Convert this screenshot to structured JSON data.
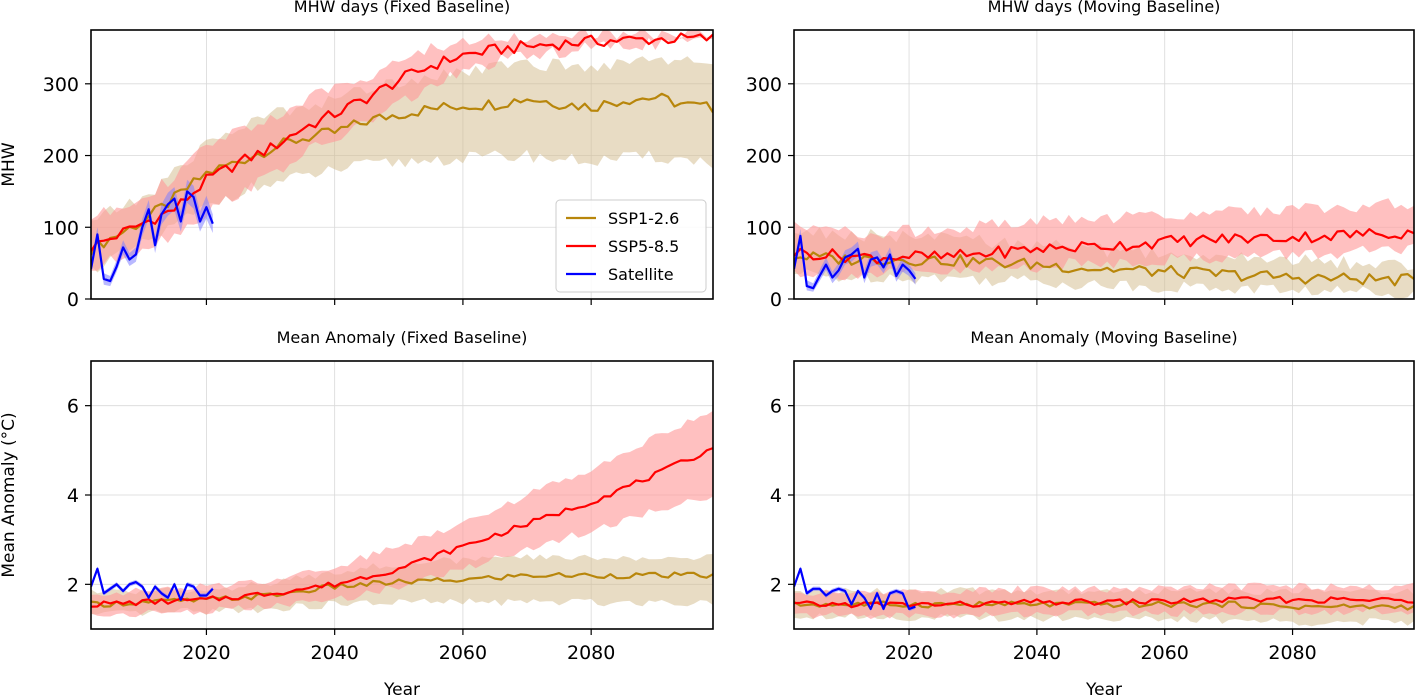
{
  "colors": {
    "ssp126": "#b8860b",
    "ssp126_band": "#d2b98a",
    "ssp585": "#ff0000",
    "ssp585_band": "#ff9a9a",
    "satellite": "#0000ff",
    "satellite_band": "#8080ff",
    "grid": "#d9d9d9",
    "axis": "#000000"
  },
  "legend": {
    "items": [
      {
        "label": "SSP1-2.6",
        "key": "ssp126"
      },
      {
        "label": "SSP5-8.5",
        "key": "ssp585"
      },
      {
        "label": "Satellite",
        "key": "satellite"
      }
    ]
  },
  "chart_data": [
    {
      "type": "line",
      "title": "MHW days (Fixed Baseline)",
      "xlabel": "",
      "ylabel": "MHW",
      "xlim": [
        2002,
        2099
      ],
      "ylim": [
        0,
        375
      ],
      "xticks": [
        2020,
        2040,
        2060,
        2080
      ],
      "yticks": [
        0,
        100,
        200,
        300
      ],
      "show_xticklabels": false,
      "grid": true,
      "legend": "center-right",
      "series": [
        {
          "name": "SSP1-2.6",
          "x": [
            2002,
            2010,
            2015,
            2020,
            2025,
            2030,
            2035,
            2040,
            2045,
            2050,
            2055,
            2060,
            2065,
            2070,
            2075,
            2080,
            2085,
            2090,
            2095,
            2099
          ],
          "values": [
            70,
            108,
            140,
            175,
            192,
            210,
            224,
            232,
            248,
            258,
            265,
            270,
            272,
            280,
            273,
            268,
            278,
            281,
            270,
            266
          ],
          "lower": [
            42,
            75,
            102,
            128,
            150,
            160,
            170,
            180,
            186,
            190,
            194,
            196,
            198,
            200,
            195,
            192,
            196,
            198,
            194,
            190
          ],
          "upper": [
            110,
            140,
            175,
            218,
            238,
            258,
            268,
            280,
            292,
            304,
            312,
            318,
            322,
            330,
            325,
            322,
            332,
            338,
            330,
            328
          ]
        },
        {
          "name": "SSP5-8.5",
          "x": [
            2002,
            2010,
            2015,
            2020,
            2025,
            2030,
            2035,
            2040,
            2045,
            2050,
            2055,
            2060,
            2065,
            2070,
            2075,
            2080,
            2085,
            2090,
            2095,
            2099
          ],
          "values": [
            72,
            105,
            125,
            165,
            190,
            210,
            238,
            258,
            280,
            305,
            325,
            340,
            347,
            352,
            356,
            359,
            361,
            362,
            363,
            363
          ],
          "lower": [
            40,
            72,
            90,
            120,
            148,
            172,
            202,
            222,
            246,
            272,
            296,
            316,
            330,
            338,
            344,
            350,
            354,
            356,
            358,
            358
          ],
          "upper": [
            112,
            145,
            168,
            212,
            236,
            252,
            275,
            294,
            312,
            332,
            348,
            360,
            364,
            366,
            367,
            368,
            369,
            369,
            369,
            369
          ]
        },
        {
          "name": "Satellite",
          "x": [
            2002,
            2003,
            2004,
            2005,
            2006,
            2007,
            2008,
            2009,
            2010,
            2011,
            2012,
            2013,
            2014,
            2015,
            2016,
            2017,
            2018,
            2019,
            2020,
            2021
          ],
          "values": [
            42,
            90,
            28,
            25,
            45,
            72,
            55,
            62,
            100,
            125,
            75,
            118,
            132,
            140,
            108,
            150,
            142,
            108,
            128,
            105
          ],
          "lower": [
            34,
            80,
            20,
            18,
            38,
            62,
            46,
            52,
            88,
            112,
            64,
            104,
            116,
            124,
            94,
            134,
            126,
            94,
            112,
            92
          ],
          "upper": [
            52,
            100,
            36,
            32,
            54,
            82,
            64,
            72,
            112,
            138,
            86,
            132,
            148,
            156,
            122,
            166,
            158,
            122,
            144,
            118
          ]
        }
      ]
    },
    {
      "type": "line",
      "title": "MHW days (Moving Baseline)",
      "xlabel": "",
      "ylabel": "",
      "xlim": [
        2002,
        2099
      ],
      "ylim": [
        0,
        375
      ],
      "xticks": [
        2020,
        2040,
        2060,
        2080
      ],
      "yticks": [
        0,
        100,
        200,
        300
      ],
      "show_xticklabels": false,
      "grid": true,
      "series": [
        {
          "name": "SSP1-2.6",
          "x": [
            2002,
            2010,
            2015,
            2020,
            2025,
            2030,
            2035,
            2040,
            2045,
            2050,
            2055,
            2060,
            2065,
            2070,
            2075,
            2080,
            2085,
            2090,
            2095,
            2099
          ],
          "values": [
            60,
            55,
            56,
            55,
            54,
            52,
            50,
            48,
            45,
            42,
            40,
            38,
            36,
            34,
            32,
            30,
            29,
            28,
            27,
            26
          ],
          "lower": [
            35,
            30,
            32,
            30,
            30,
            28,
            26,
            25,
            22,
            20,
            18,
            17,
            16,
            15,
            14,
            12,
            11,
            10,
            10,
            10
          ],
          "upper": [
            95,
            90,
            88,
            86,
            84,
            82,
            78,
            75,
            72,
            68,
            65,
            62,
            60,
            58,
            56,
            54,
            52,
            50,
            48,
            46
          ]
        },
        {
          "name": "SSP5-8.5",
          "x": [
            2002,
            2010,
            2015,
            2020,
            2025,
            2030,
            2035,
            2040,
            2045,
            2050,
            2055,
            2060,
            2065,
            2070,
            2075,
            2080,
            2085,
            2090,
            2095,
            2099
          ],
          "values": [
            65,
            60,
            58,
            60,
            58,
            62,
            66,
            70,
            72,
            74,
            76,
            80,
            82,
            84,
            85,
            86,
            88,
            90,
            92,
            92
          ],
          "lower": [
            38,
            35,
            34,
            35,
            36,
            38,
            42,
            45,
            48,
            50,
            52,
            55,
            57,
            58,
            60,
            62,
            63,
            65,
            66,
            68
          ],
          "upper": [
            100,
            95,
            92,
            95,
            96,
            100,
            104,
            108,
            110,
            112,
            114,
            118,
            120,
            122,
            124,
            126,
            128,
            130,
            132,
            132
          ]
        },
        {
          "name": "Satellite",
          "x": [
            2002,
            2003,
            2004,
            2005,
            2006,
            2007,
            2008,
            2009,
            2010,
            2011,
            2012,
            2013,
            2014,
            2015,
            2016,
            2017,
            2018,
            2019,
            2020,
            2021
          ],
          "values": [
            42,
            88,
            18,
            15,
            32,
            48,
            30,
            40,
            58,
            62,
            70,
            30,
            55,
            58,
            44,
            62,
            32,
            48,
            40,
            28
          ],
          "lower": [
            34,
            78,
            12,
            10,
            25,
            40,
            22,
            32,
            48,
            52,
            60,
            22,
            45,
            48,
            36,
            52,
            24,
            38,
            32,
            20
          ],
          "upper": [
            52,
            98,
            26,
            22,
            40,
            58,
            38,
            50,
            68,
            72,
            80,
            40,
            65,
            68,
            54,
            72,
            42,
            58,
            48,
            36
          ]
        }
      ]
    },
    {
      "type": "line",
      "title": "Mean Anomaly (Fixed Baseline)",
      "xlabel": "Year",
      "ylabel": "Mean Anomaly (°C)",
      "xlim": [
        2002,
        2099
      ],
      "ylim": [
        1.0,
        7.0
      ],
      "xticks": [
        2020,
        2040,
        2060,
        2080
      ],
      "yticks": [
        2,
        4,
        6
      ],
      "show_xticklabels": true,
      "grid": true,
      "series": [
        {
          "name": "SSP1-2.6",
          "x": [
            2002,
            2010,
            2020,
            2030,
            2040,
            2050,
            2060,
            2070,
            2080,
            2090,
            2099
          ],
          "values": [
            1.55,
            1.6,
            1.65,
            1.75,
            1.95,
            2.05,
            2.1,
            2.2,
            2.2,
            2.2,
            2.2
          ],
          "lower": [
            1.3,
            1.35,
            1.4,
            1.45,
            1.55,
            1.6,
            1.6,
            1.6,
            1.6,
            1.6,
            1.6
          ],
          "upper": [
            1.8,
            1.85,
            1.9,
            2.0,
            2.3,
            2.45,
            2.55,
            2.6,
            2.6,
            2.6,
            2.6
          ]
        },
        {
          "name": "SSP5-8.5",
          "x": [
            2002,
            2010,
            2020,
            2030,
            2040,
            2050,
            2060,
            2070,
            2080,
            2090,
            2099
          ],
          "values": [
            1.55,
            1.6,
            1.65,
            1.8,
            2.0,
            2.35,
            2.85,
            3.35,
            3.85,
            4.45,
            5.05
          ],
          "lower": [
            1.3,
            1.35,
            1.4,
            1.5,
            1.65,
            1.95,
            2.35,
            2.8,
            3.2,
            3.65,
            4.0
          ],
          "upper": [
            1.8,
            1.85,
            1.95,
            2.1,
            2.4,
            2.85,
            3.4,
            4.0,
            4.6,
            5.3,
            5.9
          ]
        },
        {
          "name": "Satellite",
          "x": [
            2002,
            2003,
            2004,
            2005,
            2006,
            2007,
            2008,
            2009,
            2010,
            2011,
            2012,
            2013,
            2014,
            2015,
            2016,
            2017,
            2018,
            2019,
            2020,
            2021
          ],
          "values": [
            1.95,
            2.35,
            1.8,
            1.9,
            2.0,
            1.85,
            2.0,
            2.05,
            1.95,
            1.7,
            1.95,
            1.8,
            1.7,
            2.0,
            1.65,
            2.0,
            1.95,
            1.75,
            1.75,
            1.9
          ],
          "lower": [
            1.9,
            2.3,
            1.75,
            1.85,
            1.95,
            1.8,
            1.95,
            2.0,
            1.9,
            1.65,
            1.9,
            1.75,
            1.65,
            1.95,
            1.6,
            1.95,
            1.9,
            1.7,
            1.7,
            1.85
          ],
          "upper": [
            2.0,
            2.4,
            1.85,
            1.95,
            2.05,
            1.9,
            2.05,
            2.1,
            2.0,
            1.75,
            2.0,
            1.85,
            1.75,
            2.05,
            1.7,
            2.05,
            2.0,
            1.8,
            1.8,
            1.95
          ]
        }
      ]
    },
    {
      "type": "line",
      "title": "Mean Anomaly (Moving Baseline)",
      "xlabel": "Year",
      "ylabel": "",
      "xlim": [
        2002,
        2099
      ],
      "ylim": [
        1.0,
        7.0
      ],
      "xticks": [
        2020,
        2040,
        2060,
        2080
      ],
      "yticks": [
        2,
        4,
        6
      ],
      "show_xticklabels": true,
      "grid": true,
      "series": [
        {
          "name": "SSP1-2.6",
          "x": [
            2002,
            2010,
            2020,
            2030,
            2040,
            2050,
            2060,
            2070,
            2080,
            2090,
            2099
          ],
          "values": [
            1.55,
            1.55,
            1.55,
            1.55,
            1.55,
            1.55,
            1.55,
            1.55,
            1.5,
            1.5,
            1.5
          ],
          "lower": [
            1.3,
            1.3,
            1.25,
            1.25,
            1.25,
            1.25,
            1.2,
            1.2,
            1.15,
            1.15,
            1.15
          ],
          "upper": [
            1.8,
            1.85,
            1.85,
            1.85,
            1.85,
            1.85,
            1.85,
            1.85,
            1.85,
            1.85,
            1.85
          ]
        },
        {
          "name": "SSP5-8.5",
          "x": [
            2002,
            2010,
            2020,
            2030,
            2040,
            2050,
            2060,
            2070,
            2080,
            2090,
            2099
          ],
          "values": [
            1.55,
            1.55,
            1.55,
            1.55,
            1.6,
            1.6,
            1.62,
            1.65,
            1.65,
            1.65,
            1.65
          ],
          "lower": [
            1.3,
            1.3,
            1.3,
            1.3,
            1.35,
            1.35,
            1.35,
            1.38,
            1.38,
            1.4,
            1.4
          ],
          "upper": [
            1.8,
            1.8,
            1.85,
            1.85,
            1.9,
            1.9,
            1.92,
            1.95,
            1.95,
            1.95,
            1.95
          ]
        },
        {
          "name": "Satellite",
          "x": [
            2002,
            2003,
            2004,
            2005,
            2006,
            2007,
            2008,
            2009,
            2010,
            2011,
            2012,
            2013,
            2014,
            2015,
            2016,
            2017,
            2018,
            2019,
            2020,
            2021
          ],
          "values": [
            1.95,
            2.35,
            1.8,
            1.9,
            1.9,
            1.75,
            1.85,
            1.9,
            1.85,
            1.55,
            1.85,
            1.7,
            1.45,
            1.8,
            1.45,
            1.8,
            1.85,
            1.8,
            1.45,
            1.5
          ],
          "lower": [
            1.9,
            2.3,
            1.75,
            1.85,
            1.85,
            1.7,
            1.8,
            1.85,
            1.8,
            1.5,
            1.8,
            1.65,
            1.4,
            1.75,
            1.4,
            1.75,
            1.8,
            1.75,
            1.4,
            1.45
          ],
          "upper": [
            2.0,
            2.4,
            1.85,
            1.95,
            1.95,
            1.8,
            1.9,
            1.95,
            1.9,
            1.6,
            1.9,
            1.75,
            1.5,
            1.85,
            1.5,
            1.85,
            1.9,
            1.85,
            1.5,
            1.55
          ]
        }
      ]
    }
  ]
}
